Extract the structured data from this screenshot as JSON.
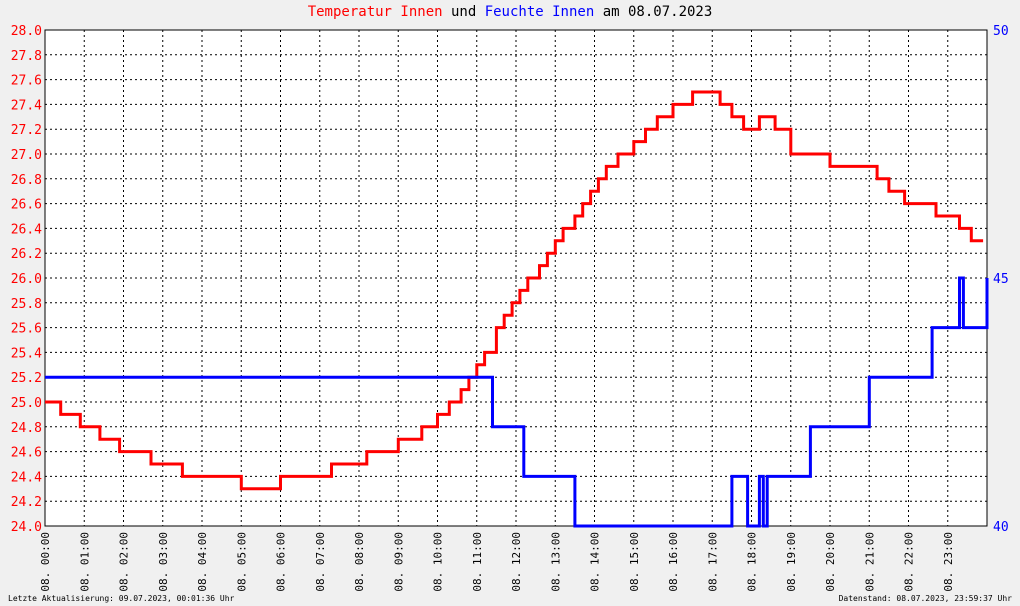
{
  "title": {
    "part1": "Temperatur Innen",
    "part2": " und ",
    "part3": "Feuchte Innen",
    "part4": " am 08.07.2023"
  },
  "footer": {
    "left": "Letzte Aktualisierung: 09.07.2023, 00:01:36 Uhr",
    "right": "Datenstand: 08.07.2023, 23:59:37 Uhr"
  },
  "colors": {
    "temperature": "#ff0000",
    "humidity": "#0000ff",
    "title_text": "#000000",
    "background": "#f0f0f0",
    "plot_background": "#ffffff",
    "grid": "#000000"
  },
  "chart_data": {
    "type": "line",
    "x_unit": "hour of day",
    "xlim": [
      0,
      24
    ],
    "x_tick_labels": [
      "08. 00:00",
      "08. 01:00",
      "08. 02:00",
      "08. 03:00",
      "08. 04:00",
      "08. 05:00",
      "08. 06:00",
      "08. 07:00",
      "08. 08:00",
      "08. 09:00",
      "08. 10:00",
      "08. 11:00",
      "08. 12:00",
      "08. 13:00",
      "08. 14:00",
      "08. 15:00",
      "08. 16:00",
      "08. 17:00",
      "08. 18:00",
      "08. 19:00",
      "08. 20:00",
      "08. 21:00",
      "08. 22:00",
      "08. 23:00"
    ],
    "left_axis": {
      "ylim": [
        24.0,
        28.0
      ],
      "tick_labels": [
        "24.0",
        "24.2",
        "24.4",
        "24.6",
        "24.8",
        "25.0",
        "25.2",
        "25.4",
        "25.6",
        "25.8",
        "26.0",
        "26.2",
        "26.4",
        "26.6",
        "26.8",
        "27.0",
        "27.2",
        "27.4",
        "27.6",
        "27.8",
        "28.0"
      ]
    },
    "right_axis": {
      "ylim": [
        40,
        50
      ],
      "tick_labels": [
        "40",
        "45",
        "50"
      ]
    },
    "grid": true,
    "series": [
      {
        "name": "Temperatur Innen",
        "axis": "left",
        "color": "#ff0000",
        "x": [
          0.0,
          0.4,
          0.9,
          1.4,
          1.9,
          2.7,
          3.5,
          4.3,
          5.0,
          5.3,
          6.0,
          6.5,
          7.3,
          8.2,
          9.0,
          9.6,
          10.0,
          10.3,
          10.6,
          10.8,
          11.0,
          11.2,
          11.5,
          11.7,
          11.9,
          12.1,
          12.3,
          12.6,
          12.8,
          13.0,
          13.2,
          13.5,
          13.7,
          13.9,
          14.1,
          14.3,
          14.6,
          15.0,
          15.3,
          15.6,
          16.0,
          16.5,
          16.9,
          17.2,
          17.5,
          17.8,
          18.2,
          18.6,
          19.0,
          19.6,
          20.0,
          20.4,
          20.9,
          21.2,
          21.5,
          21.9,
          22.3,
          22.7,
          23.0,
          23.3,
          23.6,
          23.9
        ],
        "y": [
          25.0,
          24.9,
          24.8,
          24.7,
          24.6,
          24.5,
          24.4,
          24.4,
          24.3,
          24.3,
          24.4,
          24.4,
          24.5,
          24.6,
          24.7,
          24.8,
          24.9,
          25.0,
          25.1,
          25.2,
          25.3,
          25.4,
          25.6,
          25.7,
          25.8,
          25.9,
          26.0,
          26.1,
          26.2,
          26.3,
          26.4,
          26.5,
          26.6,
          26.7,
          26.8,
          26.9,
          27.0,
          27.1,
          27.2,
          27.3,
          27.4,
          27.5,
          27.5,
          27.4,
          27.3,
          27.2,
          27.3,
          27.2,
          27.0,
          27.0,
          26.9,
          26.9,
          26.9,
          26.8,
          26.7,
          26.6,
          26.6,
          26.5,
          26.5,
          26.4,
          26.3,
          26.3
        ]
      },
      {
        "name": "Feuchte Innen",
        "axis": "right",
        "color": "#0000ff",
        "x": [
          0.0,
          10.5,
          10.6,
          11.3,
          11.4,
          12.1,
          12.2,
          13.4,
          13.5,
          17.4,
          17.5,
          17.8,
          17.9,
          18.1,
          18.2,
          18.3,
          18.4,
          18.6,
          18.7,
          19.4,
          19.5,
          20.9,
          21.0,
          22.5,
          22.6,
          23.0,
          23.1,
          23.3,
          23.4,
          23.9,
          24.0
        ],
        "y": [
          43,
          43,
          43,
          43,
          42,
          42,
          41,
          41,
          40,
          40,
          41,
          41,
          40,
          40,
          41,
          40,
          41,
          41,
          41,
          41,
          42,
          42,
          43,
          43,
          44,
          44,
          44,
          45,
          44,
          44,
          45
        ]
      }
    ]
  }
}
